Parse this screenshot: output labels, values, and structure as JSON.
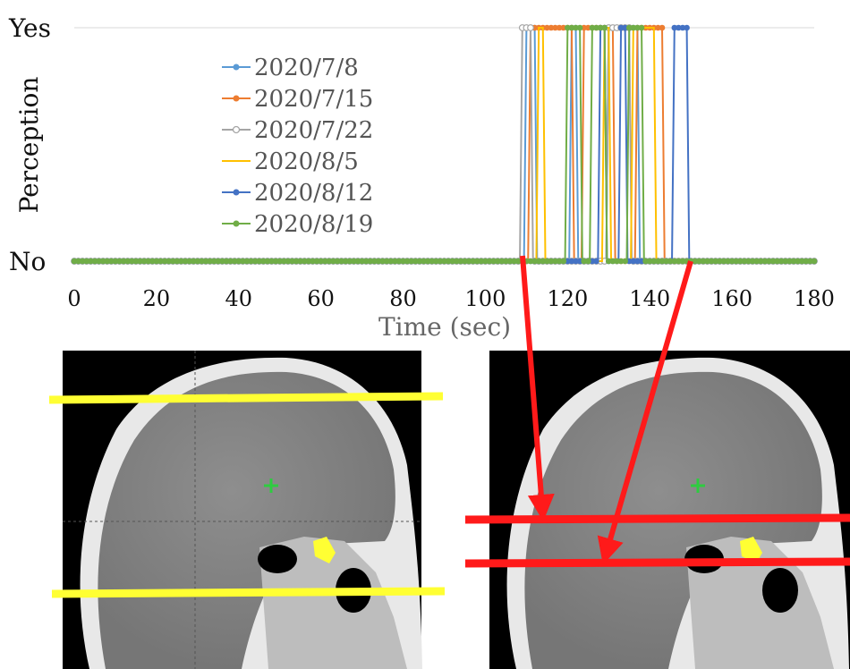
{
  "chart_data": {
    "type": "line",
    "xlabel": "Time (sec)",
    "ylabel": "Perception",
    "x_ticks": [
      "0",
      "20",
      "40",
      "60",
      "80",
      "100",
      "120",
      "140",
      "160",
      "180"
    ],
    "xlim": [
      0,
      180
    ],
    "y_categories": [
      "No",
      "Yes"
    ],
    "y_tick_labels": [
      "Yes",
      "No"
    ],
    "grid": "horizontal",
    "legend_position": "upper-left",
    "series": [
      {
        "name": "2020/7/8",
        "color": "#5b9bd5",
        "marker": "filled-circle",
        "yes_intervals": [
          [
            110,
            112
          ],
          [
            121,
            122
          ],
          [
            130,
            137
          ]
        ]
      },
      {
        "name": "2020/7/15",
        "color": "#ed7d31",
        "marker": "filled-circle",
        "yes_intervals": [
          [
            111,
            121
          ],
          [
            124,
            131
          ],
          [
            137,
            143
          ]
        ]
      },
      {
        "name": "2020/7/22",
        "color": "#a5a5a5",
        "marker": "hollow-circle",
        "yes_intervals": [
          [
            109,
            111
          ],
          [
            130,
            135
          ]
        ]
      },
      {
        "name": "2020/8/5",
        "color": "#ffc000",
        "marker": "none",
        "yes_intervals": [
          [
            113,
            114
          ],
          [
            129,
            130
          ],
          [
            136,
            141
          ]
        ]
      },
      {
        "name": "2020/8/12",
        "color": "#4472c4",
        "marker": "filled-circle",
        "yes_intervals": [
          [
            128,
            129
          ],
          [
            133,
            134
          ],
          [
            146,
            149
          ]
        ]
      },
      {
        "name": "2020/8/19",
        "color": "#70ad47",
        "marker": "filled-circle",
        "yes_intervals": [
          [
            120,
            123
          ],
          [
            126,
            129
          ],
          [
            135,
            138
          ]
        ]
      }
    ]
  },
  "ct_panels": [
    {
      "slice_lines": "two yellow lines"
    },
    {
      "slice_lines": "two red lines"
    }
  ],
  "annotation_colors": {
    "yellow_line": "#ffff33",
    "red_line": "#ff1a1a",
    "crosshair": "#2ecc40"
  }
}
